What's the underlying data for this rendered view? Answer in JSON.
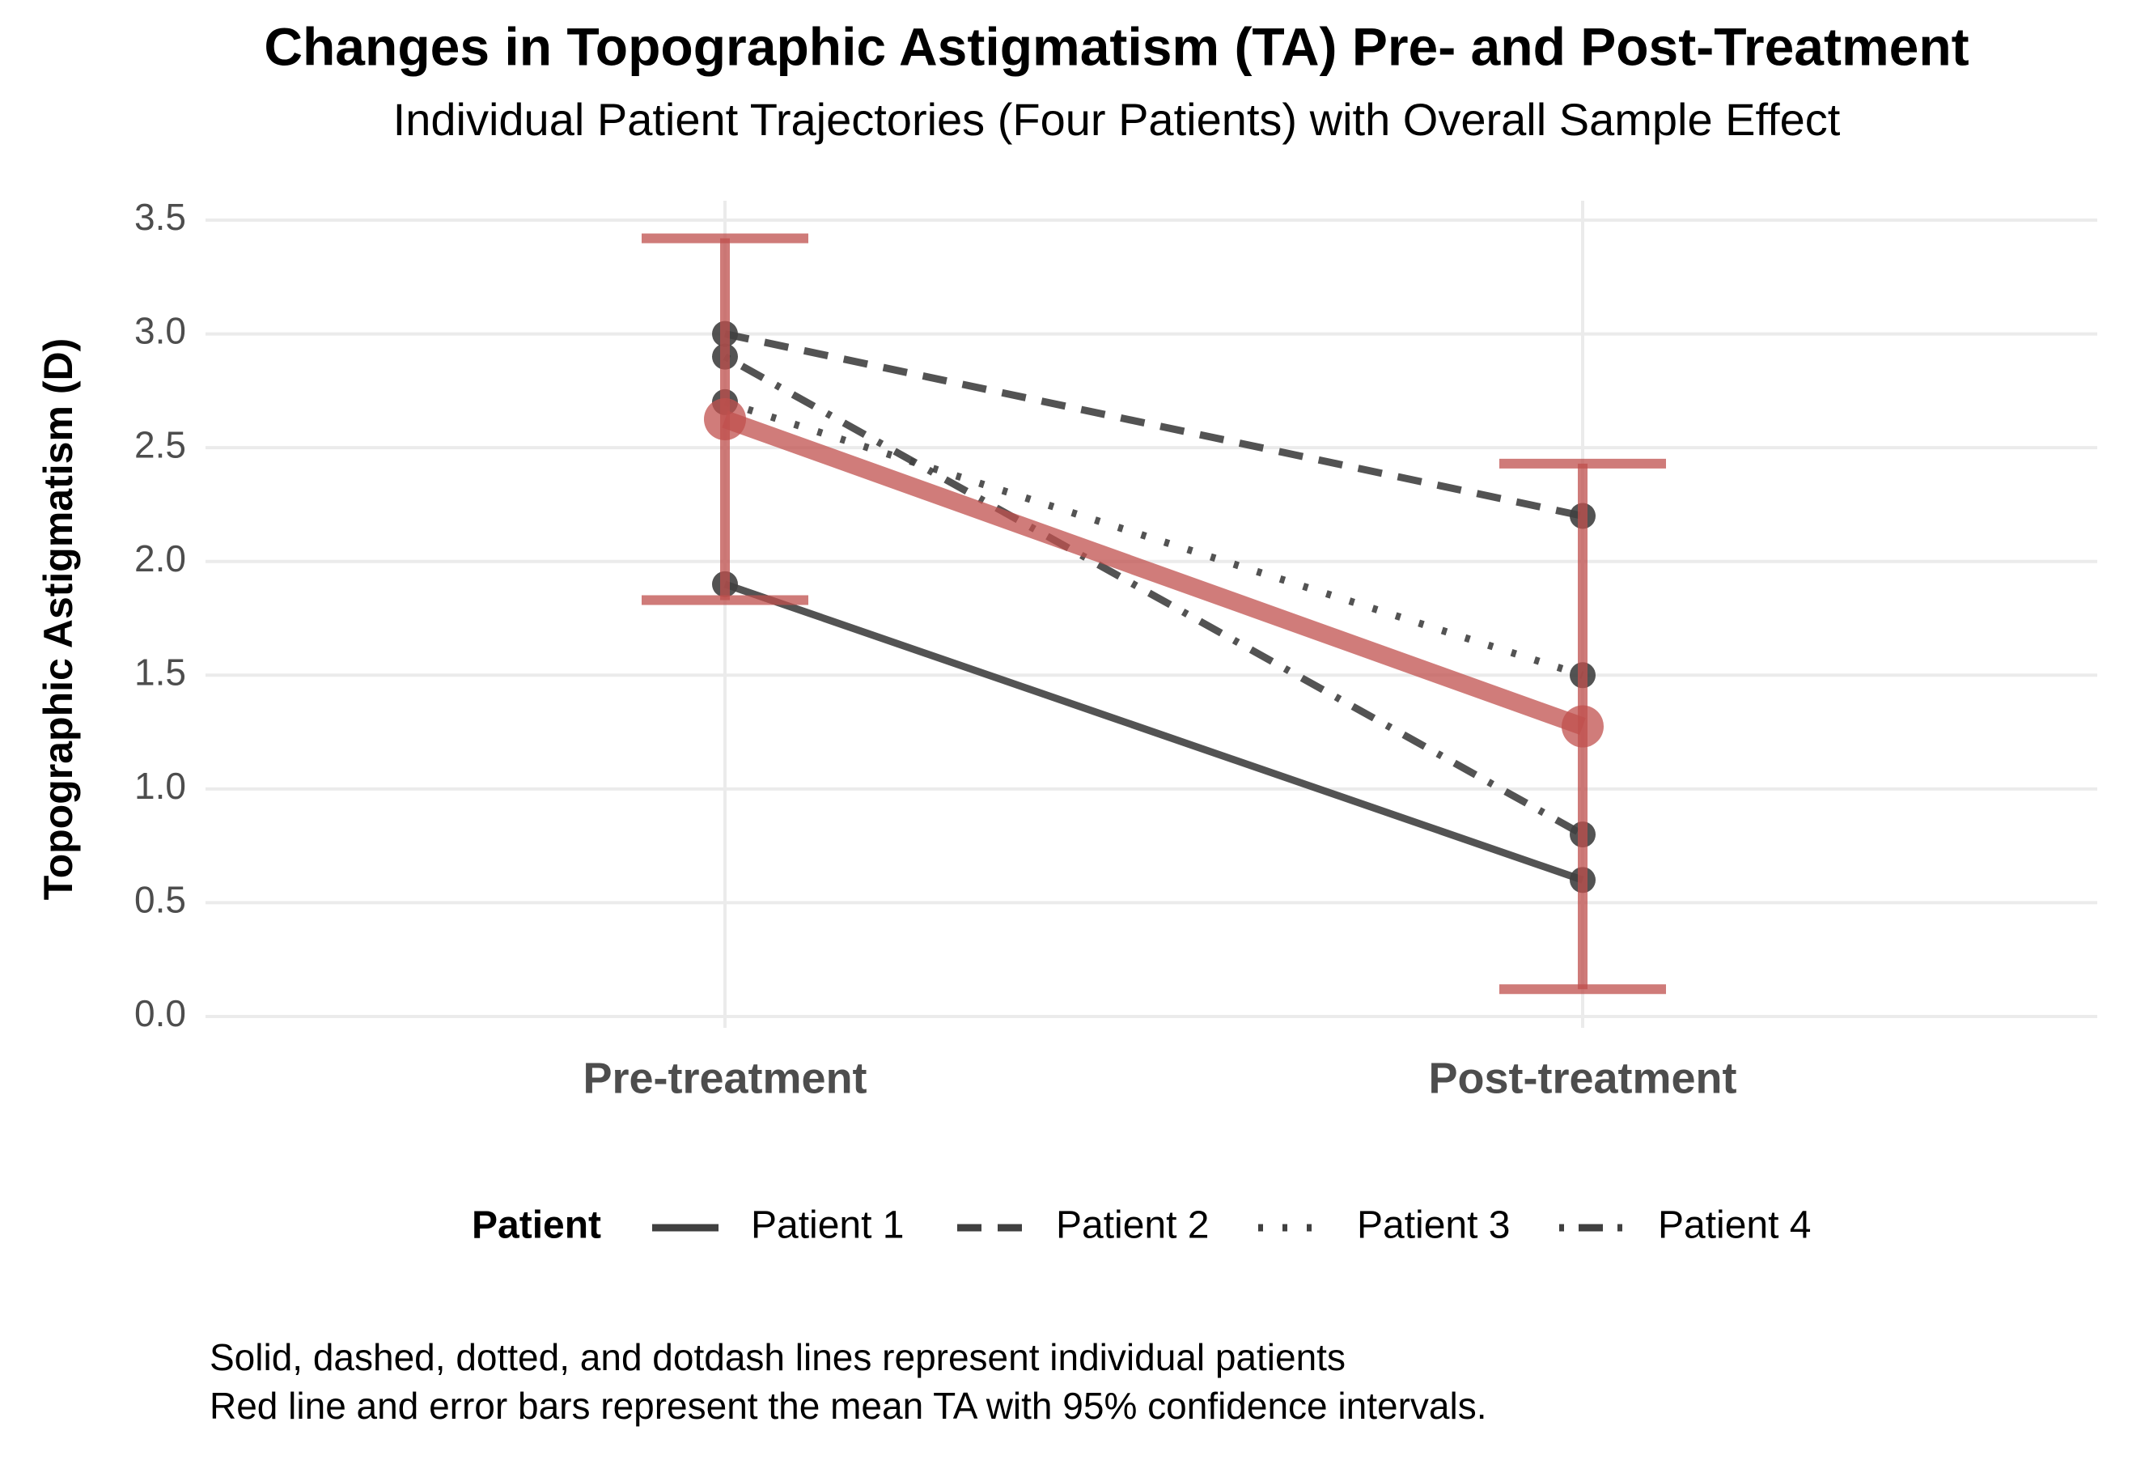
{
  "chart_data": {
    "type": "line",
    "title": "Changes in Topographic Astigmatism (TA) Pre- and Post-Treatment",
    "subtitle": "Individual Patient Trajectories (Four Patients) with Overall Sample Effect",
    "y_label": "Topographic Astigmatism (D)",
    "categories": [
      "Pre-treatment",
      "Post-treatment"
    ],
    "series": [
      {
        "name": "Patient 1",
        "color": "#404040",
        "linestyle": "solid",
        "values": [
          1.9,
          0.6
        ]
      },
      {
        "name": "Patient 2",
        "color": "#404040",
        "linestyle": "dashed",
        "values": [
          3.0,
          2.2
        ]
      },
      {
        "name": "Patient 3",
        "color": "#404040",
        "linestyle": "dotted",
        "values": [
          2.7,
          1.5
        ]
      },
      {
        "name": "Patient 4",
        "color": "#404040",
        "linestyle": "dotdash",
        "values": [
          2.9,
          0.8
        ]
      }
    ],
    "mean": {
      "color": "#c0504d",
      "values": [
        2.625,
        1.275
      ],
      "ci_lower": [
        1.83,
        0.12
      ],
      "ci_upper": [
        3.42,
        2.43
      ]
    },
    "legend_title": "Patient",
    "legend_position": "bottom",
    "ylim": [
      0,
      3.5
    ],
    "yticks": [
      {
        "value": 0,
        "label": "0.0"
      },
      0.5,
      {
        "value": 1,
        "label": "1.0"
      },
      1.5,
      {
        "value": 2,
        "label": "2.0"
      },
      2.5,
      {
        "value": 3,
        "label": "3.0"
      },
      3.5
    ],
    "grid": true,
    "caption": [
      "Solid, dashed, dotted, and dotdash lines represent individual patients",
      "Red line and error bars represent the mean TA with 95% confidence intervals."
    ]
  }
}
